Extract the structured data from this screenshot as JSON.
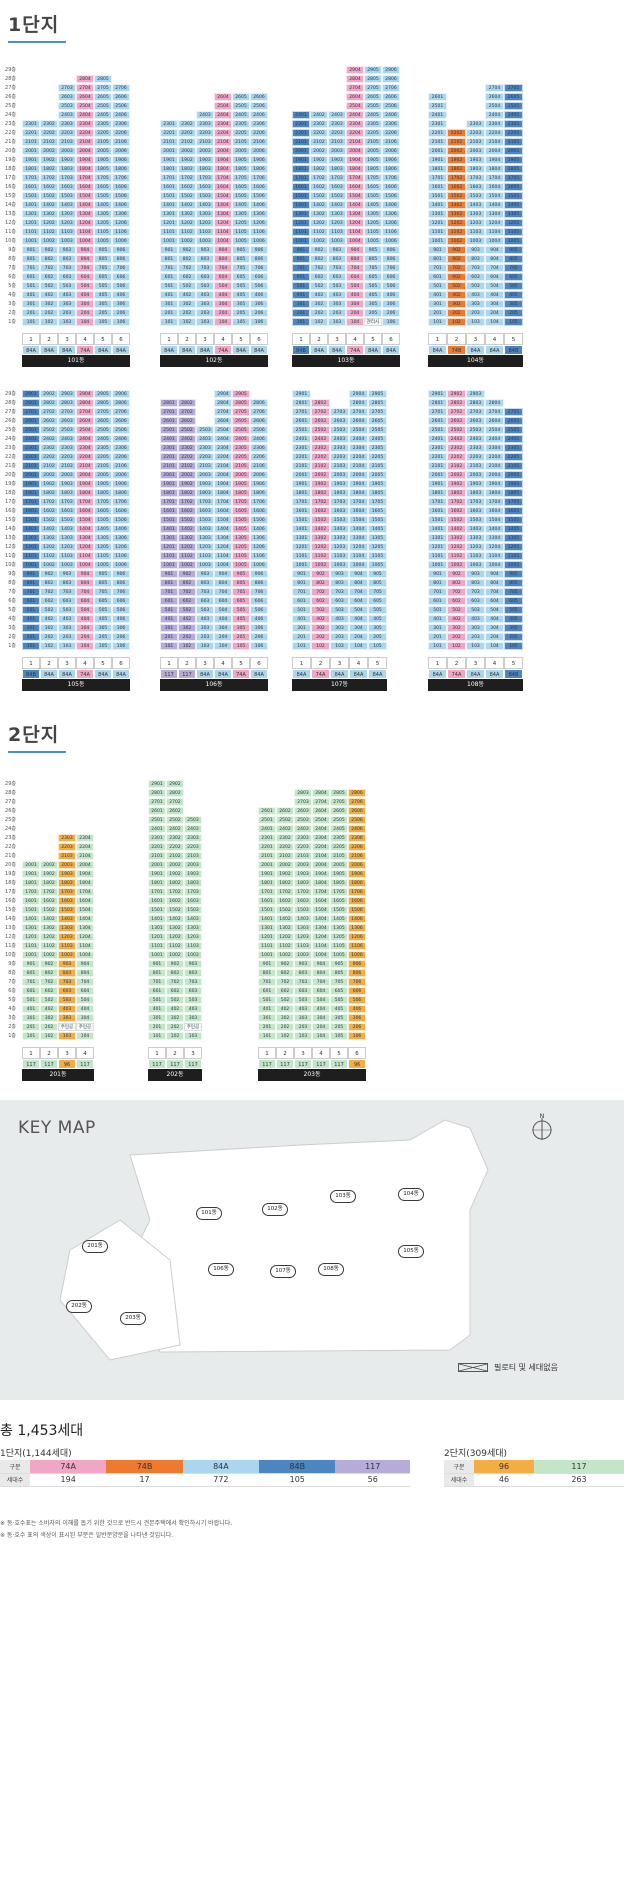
{
  "sections": {
    "dan1_title": "1단지",
    "dan2_title": "2단지"
  },
  "colors": {
    "74A": "#f2a6c6",
    "74B": "#ee7a30",
    "84A": "#abd6ef",
    "84B": "#4d85c2",
    "117": "#b7abd9",
    "96": "#f3ad44",
    "117g": "#c3e6c9"
  },
  "floor_labels": [
    "29층",
    "28층",
    "27층",
    "26층",
    "25층",
    "24층",
    "23층",
    "22층",
    "21층",
    "20층",
    "19층",
    "18층",
    "17층",
    "16층",
    "15층",
    "14층",
    "13층",
    "12층",
    "11층",
    "10층",
    "9층",
    "8층",
    "7층",
    "6층",
    "5층",
    "4층",
    "3층",
    "2층",
    "1층"
  ],
  "buildings": [
    {
      "name": "101동",
      "lines": [
        1,
        2,
        3,
        4,
        5,
        6
      ],
      "types": [
        "84A",
        "84A",
        "84A",
        "74A",
        "84A",
        "84A"
      ],
      "tops": [
        23,
        23,
        27,
        28,
        28,
        27
      ],
      "bottoms": [
        1,
        1,
        1,
        1,
        1,
        1
      ],
      "annot": []
    },
    {
      "name": "102동",
      "lines": [
        1,
        2,
        3,
        4,
        5,
        6
      ],
      "types": [
        "84A",
        "84A",
        "84A",
        "74A",
        "84A",
        "84A"
      ],
      "tops": [
        23,
        23,
        24,
        26,
        26,
        26
      ],
      "bottoms": [
        1,
        1,
        1,
        1,
        1,
        1
      ],
      "annot": []
    },
    {
      "name": "103동",
      "lines": [
        1,
        2,
        3,
        4,
        5,
        6
      ],
      "types": [
        "84B",
        "84A",
        "84A",
        "74A",
        "84A",
        "84A"
      ],
      "tops": [
        24,
        24,
        24,
        29,
        29,
        29
      ],
      "bottoms": [
        1,
        1,
        1,
        1,
        1,
        1
      ],
      "annot": [
        {
          "line": 5,
          "floor": 1,
          "text": "관리사무소"
        }
      ]
    },
    {
      "name": "104동",
      "lines": [
        1,
        2,
        3,
        4,
        5
      ],
      "types": [
        "84A",
        "74B",
        "84A",
        "84A",
        "84B"
      ],
      "tops": [
        26,
        22,
        23,
        27,
        27
      ],
      "bottoms": [
        1,
        1,
        1,
        1,
        1
      ],
      "annot": []
    },
    {
      "name": "105동",
      "lines": [
        1,
        2,
        3,
        4,
        5,
        6
      ],
      "types": [
        "84B",
        "84A",
        "84A",
        "74A",
        "84A",
        "84A"
      ],
      "tops": [
        29,
        29,
        29,
        29,
        29,
        29
      ],
      "bottoms": [
        1,
        1,
        1,
        1,
        1,
        1
      ],
      "annot": []
    },
    {
      "name": "106동",
      "lines": [
        1,
        2,
        3,
        4,
        5,
        6
      ],
      "types": [
        "117",
        "117",
        "84A",
        "84A",
        "74A",
        "84A"
      ],
      "tops": [
        28,
        28,
        25,
        29,
        29,
        28
      ],
      "bottoms": [
        1,
        1,
        1,
        1,
        1,
        1
      ],
      "annot": []
    },
    {
      "name": "107동",
      "lines": [
        1,
        2,
        3,
        4,
        5
      ],
      "types": [
        "84A",
        "74A",
        "84A",
        "84A",
        "84A"
      ],
      "tops": [
        29,
        28,
        27,
        29,
        29
      ],
      "bottoms": [
        1,
        1,
        1,
        1,
        1
      ],
      "annot": []
    },
    {
      "name": "108동",
      "lines": [
        1,
        2,
        3,
        4,
        5
      ],
      "types": [
        "84A",
        "74A",
        "84A",
        "84A",
        "84B"
      ],
      "tops": [
        29,
        29,
        29,
        28,
        27
      ],
      "bottoms": [
        1,
        1,
        1,
        1,
        1
      ],
      "annot": []
    }
  ],
  "buildings2": [
    {
      "name": "201동",
      "lines": [
        1,
        2,
        3,
        4
      ],
      "types": [
        "117",
        "117",
        "96",
        "117"
      ],
      "tops": [
        20,
        20,
        23,
        23
      ],
      "bottoms": [
        1,
        1,
        1,
        1
      ],
      "annot": [
        {
          "line": 3,
          "floor": 2,
          "text": "주민공동"
        },
        {
          "line": 4,
          "floor": 2,
          "text": "주민공동시설"
        }
      ]
    },
    {
      "name": "202동",
      "lines": [
        1,
        2,
        3
      ],
      "types": [
        "117",
        "117",
        "117"
      ],
      "tops": [
        29,
        29,
        25
      ],
      "bottoms": [
        1,
        1,
        1
      ],
      "annot": [
        {
          "line": 3,
          "floor": 2,
          "text": "주민공동"
        }
      ]
    },
    {
      "name": "203동",
      "lines": [
        1,
        2,
        3,
        4,
        5,
        6
      ],
      "types": [
        "117",
        "117",
        "117",
        "117",
        "117",
        "96"
      ],
      "tops": [
        26,
        26,
        28,
        28,
        28,
        28
      ],
      "bottoms": [
        1,
        1,
        1,
        1,
        1,
        1
      ],
      "annot": [
        {
          "line": 1,
          "floor": 29,
          "text": "드론통합관리사무소"
        }
      ]
    }
  ],
  "keymap": {
    "title": "KEY MAP",
    "north": "N",
    "tags": [
      "101동",
      "102동",
      "103동",
      "104동",
      "105동",
      "106동",
      "107동",
      "108동",
      "201동",
      "202동",
      "203동"
    ],
    "legend": "필로티 및 세대없음"
  },
  "summary": {
    "total": "총 1,453세대",
    "dan1_title": "1단지(1,144세대)",
    "dan2_title": "2단지(309세대)",
    "row_label_type": "구분",
    "row_label_count": "세대수",
    "dan1": [
      {
        "type": "74A",
        "count": "194"
      },
      {
        "type": "74B",
        "count": "17"
      },
      {
        "type": "84A",
        "count": "772"
      },
      {
        "type": "84B",
        "count": "105"
      },
      {
        "type": "117",
        "count": "56"
      }
    ],
    "dan2": [
      {
        "type": "96",
        "count": "46"
      },
      {
        "type": "117",
        "count": "263"
      }
    ]
  },
  "notes": [
    "※ 동·호수표는 소비자의 이해를 돕기 위한 것으로 반드시 견본주택에서 확인하시기 바랍니다.",
    "※ 동·호수 표의 색상이 표시된 부분은 일반분양분을 나타낸 것입니다."
  ]
}
